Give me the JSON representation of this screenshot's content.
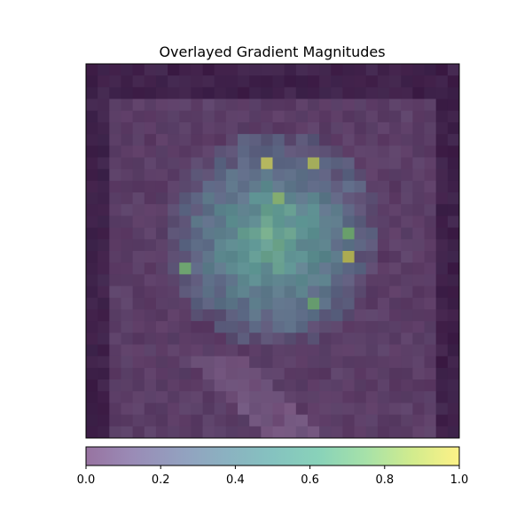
{
  "chart_data": {
    "type": "heatmap",
    "title": "Overlayed Gradient Magnitudes",
    "xlabel": "",
    "ylabel": "",
    "grid": false,
    "axis_ticks_visible": false,
    "rows": 32,
    "cols": 32,
    "overlay": {
      "base_image": "grayscale photograph (face) underneath",
      "colormap": "viridis",
      "alpha": 0.5
    },
    "colorbar": {
      "orientation": "horizontal",
      "placement": "bottom",
      "colormap": "viridis",
      "range": [
        0.0,
        1.0
      ],
      "ticks": [
        0.0,
        0.2,
        0.4,
        0.6,
        0.8,
        1.0
      ],
      "tick_labels": [
        "0.0",
        "0.2",
        "0.4",
        "0.6",
        "0.8",
        "1.0"
      ]
    },
    "peak_cells": [
      {
        "row": 8,
        "col": 15,
        "value": 0.95
      },
      {
        "row": 8,
        "col": 19,
        "value": 0.92
      },
      {
        "row": 11,
        "col": 16,
        "value": 0.8
      },
      {
        "row": 14,
        "col": 22,
        "value": 0.75
      },
      {
        "row": 16,
        "col": 22,
        "value": 0.96
      },
      {
        "row": 17,
        "col": 8,
        "value": 0.75
      },
      {
        "row": 20,
        "col": 19,
        "value": 0.72
      }
    ]
  }
}
